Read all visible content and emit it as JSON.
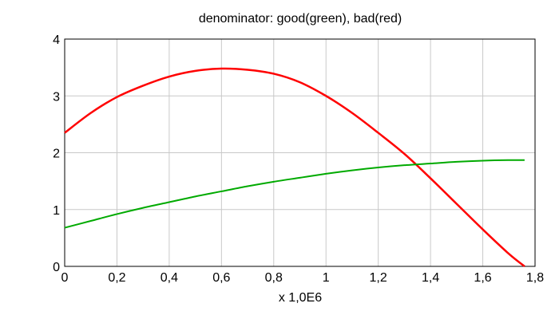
{
  "chart_data": {
    "type": "line",
    "title": "denominator: good(green), bad(red)",
    "xlabel": "x 1,0E6",
    "ylabel": "",
    "xlim": [
      0,
      1.8
    ],
    "ylim": [
      0,
      4
    ],
    "grid": true,
    "legend": "none",
    "x_ticks": [
      "0",
      "0,2",
      "0,4",
      "0,6",
      "0,8",
      "1",
      "1,2",
      "1,4",
      "1,6",
      "1,8"
    ],
    "y_ticks": [
      "0",
      "1",
      "2",
      "3",
      "4"
    ],
    "x_tick_values": [
      0,
      0.2,
      0.4,
      0.6,
      0.8,
      1.0,
      1.2,
      1.4,
      1.6,
      1.8
    ],
    "y_tick_values": [
      0,
      1,
      2,
      3,
      4
    ],
    "series": [
      {
        "color": "#ff0000",
        "x": [
          0,
          0.1,
          0.2,
          0.3,
          0.4,
          0.5,
          0.6,
          0.7,
          0.8,
          0.9,
          1.0,
          1.1,
          1.2,
          1.3,
          1.4,
          1.5,
          1.6,
          1.7,
          1.76
        ],
        "values": [
          2.35,
          2.7,
          2.98,
          3.18,
          3.34,
          3.44,
          3.48,
          3.46,
          3.39,
          3.24,
          3.0,
          2.7,
          2.35,
          1.98,
          1.55,
          1.1,
          0.65,
          0.22,
          0.0
        ]
      },
      {
        "color": "#00aa00",
        "x": [
          0,
          0.1,
          0.2,
          0.3,
          0.4,
          0.5,
          0.6,
          0.7,
          0.8,
          0.9,
          1.0,
          1.1,
          1.2,
          1.3,
          1.4,
          1.5,
          1.6,
          1.7,
          1.76
        ],
        "values": [
          0.68,
          0.8,
          0.92,
          1.03,
          1.13,
          1.23,
          1.32,
          1.41,
          1.49,
          1.56,
          1.63,
          1.69,
          1.74,
          1.78,
          1.81,
          1.84,
          1.86,
          1.87,
          1.87
        ]
      }
    ]
  }
}
